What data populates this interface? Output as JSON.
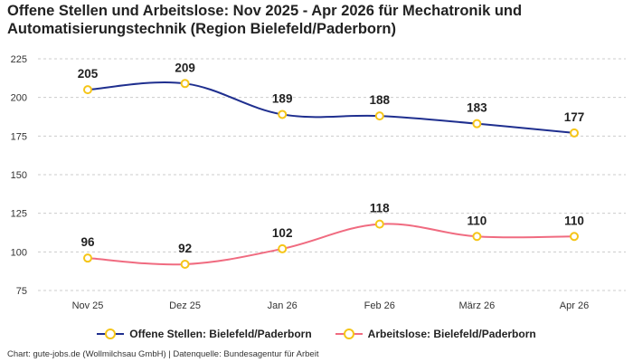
{
  "title": "Offene Stellen und Arbeitslose: Nov 2025 - Apr 2026 für Mechatronik und Automatisierungstechnik (Region Bielefeld/Paderborn)",
  "footer": "Chart: gute-jobs.de (Wollmilchsau GmbH) | Datenquelle: Bundesagentur für Arbeit",
  "colors": {
    "series_1": "#1f2f8f",
    "series_2": "#f06b80",
    "marker": "#f5c518",
    "grid": "#cccccc"
  },
  "chart_data": {
    "type": "line",
    "title": "Offene Stellen und Arbeitslose: Nov 2025 - Apr 2026 für Mechatronik und Automatisierungstechnik (Region Bielefeld/Paderborn)",
    "categories": [
      "Nov 25",
      "Dez 25",
      "Jan 26",
      "Feb 26",
      "März 26",
      "Apr 26"
    ],
    "series": [
      {
        "name": "Offene Stellen: Bielefeld/Paderborn",
        "values": [
          205,
          209,
          189,
          188,
          183,
          177
        ]
      },
      {
        "name": "Arbeitslose: Bielefeld/Paderborn",
        "values": [
          96,
          92,
          102,
          118,
          110,
          110
        ]
      }
    ],
    "y_ticks": [
      75,
      100,
      125,
      150,
      175,
      200,
      225
    ],
    "ylim": [
      75,
      225
    ],
    "grid": true,
    "legend_position": "bottom",
    "xlabel": "",
    "ylabel": ""
  }
}
